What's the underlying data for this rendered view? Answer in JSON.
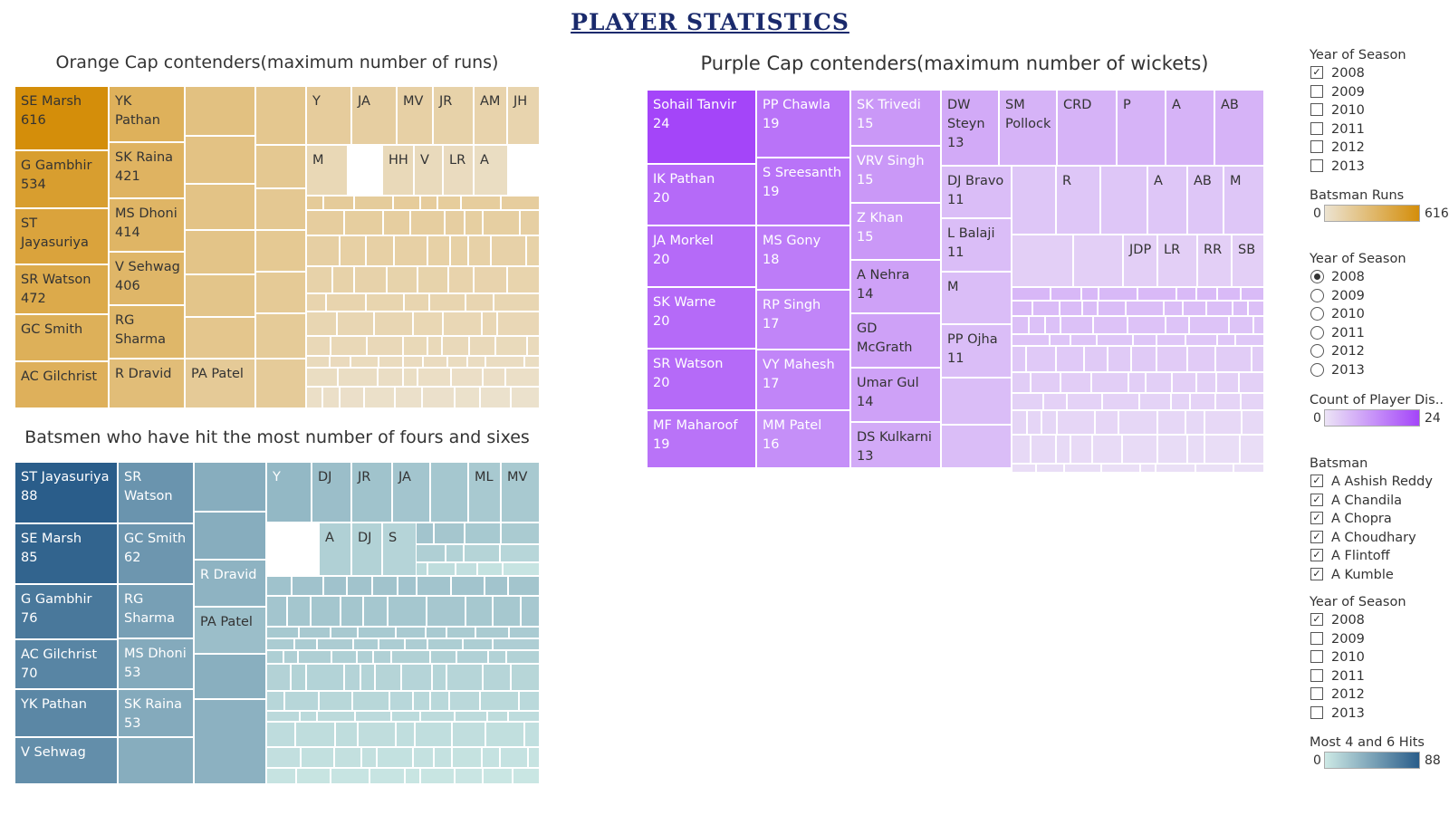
{
  "page_title": "PLAYER STATISTICS",
  "colors": {
    "orange_low": "#ece3d1",
    "orange_high": "#d48e0a",
    "purple_low": "#ece4f6",
    "purple_high": "#a445f9",
    "teal_low": "#cde9e5",
    "teal_high": "#2a5d8a"
  },
  "chart_data": [
    {
      "type": "treemap",
      "title": "Orange Cap contenders(maximum number of runs)",
      "measure": "Batsman Runs",
      "range": [
        0,
        616
      ],
      "items": [
        {
          "label": "SE Marsh",
          "value": 616
        },
        {
          "label": "G Gambhir",
          "value": 534
        },
        {
          "label": "ST Jayasuriya",
          "value": null
        },
        {
          "label": "SR Watson",
          "value": 472
        },
        {
          "label": "GC Smith",
          "value": null
        },
        {
          "label": "AC Gilchrist",
          "value": null
        },
        {
          "label": "YK Pathan",
          "value": null
        },
        {
          "label": "SK Raina",
          "value": 421
        },
        {
          "label": "MS Dhoni",
          "value": 414
        },
        {
          "label": "V Sehwag",
          "value": 406
        },
        {
          "label": "RG Sharma",
          "value": null
        },
        {
          "label": "R Dravid",
          "value": null
        },
        {
          "label": "PA Patel",
          "value": null
        },
        {
          "label": "Y",
          "value": null
        },
        {
          "label": "JA",
          "value": null
        },
        {
          "label": "MV",
          "value": null
        },
        {
          "label": "JR",
          "value": null
        },
        {
          "label": "AM",
          "value": null
        },
        {
          "label": "JH",
          "value": null
        },
        {
          "label": "M",
          "value": null
        },
        {
          "label": "HH",
          "value": null
        },
        {
          "label": "V",
          "value": null
        },
        {
          "label": "LR",
          "value": null
        },
        {
          "label": "A",
          "value": null
        }
      ]
    },
    {
      "type": "treemap",
      "title": "Batsmen who have hit the most number of fours and sixes",
      "measure": "Most 4 and 6 Hits",
      "range": [
        0,
        88
      ],
      "items": [
        {
          "label": "ST Jayasuriya",
          "value": 88
        },
        {
          "label": "SE Marsh",
          "value": 85
        },
        {
          "label": "G Gambhir",
          "value": 76
        },
        {
          "label": "AC Gilchrist",
          "value": 70
        },
        {
          "label": "YK Pathan",
          "value": null
        },
        {
          "label": "V Sehwag",
          "value": null
        },
        {
          "label": "SR Watson",
          "value": null
        },
        {
          "label": "GC Smith",
          "value": 62
        },
        {
          "label": "RG Sharma",
          "value": null
        },
        {
          "label": "MS Dhoni",
          "value": 53
        },
        {
          "label": "SK Raina",
          "value": 53
        },
        {
          "label": "R Dravid",
          "value": null
        },
        {
          "label": "PA Patel",
          "value": null
        },
        {
          "label": "Y",
          "value": null
        },
        {
          "label": "DJ",
          "value": null
        },
        {
          "label": "JR",
          "value": null
        },
        {
          "label": "JA",
          "value": null
        },
        {
          "label": "ML",
          "value": null
        },
        {
          "label": "MV",
          "value": null
        },
        {
          "label": "A",
          "value": null
        },
        {
          "label": "DJ",
          "value": null
        },
        {
          "label": "S",
          "value": null
        }
      ]
    },
    {
      "type": "treemap",
      "title": "Purple Cap contenders(maximum number of wickets)",
      "measure": "Count of Player Dis..",
      "range": [
        0,
        24
      ],
      "items": [
        {
          "label": "Sohail Tanvir",
          "value": 24
        },
        {
          "label": "IK Pathan",
          "value": 20
        },
        {
          "label": "JA Morkel",
          "value": 20
        },
        {
          "label": "SK Warne",
          "value": 20
        },
        {
          "label": "SR Watson",
          "value": 20
        },
        {
          "label": "MF Maharoof",
          "value": 19
        },
        {
          "label": "PP Chawla",
          "value": 19
        },
        {
          "label": "S Sreesanth",
          "value": 19
        },
        {
          "label": "MS Gony",
          "value": 18
        },
        {
          "label": "RP Singh",
          "value": 17
        },
        {
          "label": "VY Mahesh",
          "value": 17
        },
        {
          "label": "MM Patel",
          "value": 16
        },
        {
          "label": "SK Trivedi",
          "value": 15
        },
        {
          "label": "VRV Singh",
          "value": 15
        },
        {
          "label": "Z Khan",
          "value": 15
        },
        {
          "label": "A Nehra",
          "value": 14
        },
        {
          "label": "GD McGrath",
          "value": null
        },
        {
          "label": "Umar Gul",
          "value": 14
        },
        {
          "label": "DS Kulkarni",
          "value": 13
        },
        {
          "label": "DW Steyn",
          "value": 13
        },
        {
          "label": "SM Pollock",
          "value": null
        },
        {
          "label": "DJ Bravo",
          "value": 11
        },
        {
          "label": "L Balaji",
          "value": 11
        },
        {
          "label": "M",
          "value": null
        },
        {
          "label": "PP Ojha",
          "value": 11
        },
        {
          "label": "CRD",
          "value": null
        },
        {
          "label": "P",
          "value": null
        },
        {
          "label": "A",
          "value": null
        },
        {
          "label": "AB",
          "value": null
        },
        {
          "label": "R",
          "value": null
        },
        {
          "label": "A",
          "value": null
        },
        {
          "label": "AB",
          "value": null
        },
        {
          "label": "M",
          "value": null
        },
        {
          "label": "JDP",
          "value": null
        },
        {
          "label": "LR",
          "value": null
        },
        {
          "label": "RR",
          "value": null
        },
        {
          "label": "SB",
          "value": null
        }
      ]
    }
  ],
  "orange": {
    "title": "Orange Cap contenders(maximum number of runs)",
    "cells": [
      {
        "t": "SE Marsh\n616",
        "v": 616,
        "dark": true
      },
      {
        "t": "G Gambhir\n534",
        "v": 534,
        "dark": true
      },
      {
        "t": "ST\nJayasuriya",
        "v": 505,
        "dark": true
      },
      {
        "t": "SR Watson\n472",
        "v": 472,
        "dark": true
      },
      {
        "t": "GC Smith",
        "v": 441,
        "dark": true
      },
      {
        "t": "AC Gilchrist",
        "v": 436,
        "dark": true
      },
      {
        "t": "YK\nPathan",
        "v": 435,
        "dark": true
      },
      {
        "t": "SK Raina\n421",
        "v": 421,
        "dark": true
      },
      {
        "t": "MS Dhoni\n414",
        "v": 414,
        "dark": true
      },
      {
        "t": "V Sehwag\n406",
        "v": 406,
        "dark": true
      },
      {
        "t": "RG\nSharma",
        "v": 404,
        "dark": true
      },
      {
        "t": "R Dravid",
        "v": 371,
        "dark": true
      },
      {
        "t": "PA Patel",
        "v": 302,
        "dark": true
      },
      {
        "t": "",
        "v": 350
      },
      {
        "t": "",
        "v": 345
      },
      {
        "t": "",
        "v": 340
      },
      {
        "t": "",
        "v": 335
      },
      {
        "t": "",
        "v": 330
      },
      {
        "t": "",
        "v": 325
      },
      {
        "t": "",
        "v": 320
      },
      {
        "t": "",
        "v": 315
      },
      {
        "t": "",
        "v": 312
      },
      {
        "t": "",
        "v": 310
      },
      {
        "t": "",
        "v": 305
      },
      {
        "t": "",
        "v": 300
      },
      {
        "t": "",
        "v": 297
      },
      {
        "t": "Y",
        "v": 290
      },
      {
        "t": "JA",
        "v": 280
      },
      {
        "t": "MV",
        "v": 270
      },
      {
        "t": "JR",
        "v": 262
      },
      {
        "t": "AM",
        "v": 255
      },
      {
        "t": "JH",
        "v": 250
      },
      {
        "t": "M",
        "v": 232
      },
      {
        "t": "HH",
        "v": 225
      },
      {
        "t": "V",
        "v": 220
      },
      {
        "t": "LR",
        "v": 212
      },
      {
        "t": "A",
        "v": 205
      },
      {
        "t": "",
        "v": 200
      }
    ]
  },
  "sixes": {
    "title": "Batsmen who have hit the most number of fours and sixes",
    "cells": [
      {
        "t": "ST Jayasuriya\n88",
        "v": 88
      },
      {
        "t": "SE Marsh\n85",
        "v": 85
      },
      {
        "t": "G Gambhir\n76",
        "v": 76
      },
      {
        "t": "AC Gilchrist\n70",
        "v": 70
      },
      {
        "t": "YK Pathan",
        "v": 69
      },
      {
        "t": "V Sehwag",
        "v": 66
      },
      {
        "t": "SR\nWatson",
        "v": 63
      },
      {
        "t": "GC Smith\n62",
        "v": 62
      },
      {
        "t": "RG\nSharma",
        "v": 58
      },
      {
        "t": "MS Dhoni\n53",
        "v": 53
      },
      {
        "t": "SK Raina\n53",
        "v": 53
      },
      {
        "t": "",
        "v": 52
      },
      {
        "t": "",
        "v": 52
      },
      {
        "t": "R Dravid",
        "v": 49
      },
      {
        "t": "PA Patel",
        "v": 44
      },
      {
        "t": "",
        "v": 52
      },
      {
        "t": "",
        "v": 51
      },
      {
        "t": "",
        "v": 50
      },
      {
        "t": "Y",
        "v": 47
      },
      {
        "t": "DJ",
        "v": 44
      },
      {
        "t": "JR",
        "v": 42
      },
      {
        "t": "JA",
        "v": 41
      },
      {
        "t": "",
        "v": 40
      },
      {
        "t": "ML",
        "v": 39
      },
      {
        "t": "MV",
        "v": 39
      },
      {
        "t": "A",
        "v": 36
      },
      {
        "t": "DJ",
        "v": 35
      },
      {
        "t": "S",
        "v": 34
      }
    ]
  },
  "purple": {
    "title": "Purple Cap contenders(maximum number of wickets)",
    "cells": [
      {
        "t": "Sohail Tanvir\n24",
        "v": 24
      },
      {
        "t": "IK Pathan\n20",
        "v": 20
      },
      {
        "t": "JA Morkel\n20",
        "v": 20
      },
      {
        "t": "SK Warne\n20",
        "v": 20
      },
      {
        "t": "SR Watson\n20",
        "v": 20
      },
      {
        "t": "MF Maharoof\n19",
        "v": 19
      },
      {
        "t": "PP Chawla\n19",
        "v": 19
      },
      {
        "t": "S Sreesanth\n19",
        "v": 19
      },
      {
        "t": "MS Gony\n18",
        "v": 18
      },
      {
        "t": "RP Singh\n17",
        "v": 17
      },
      {
        "t": "VY Mahesh\n17",
        "v": 17
      },
      {
        "t": "MM Patel\n16",
        "v": 16
      },
      {
        "t": "SK Trivedi\n15",
        "v": 15
      },
      {
        "t": "VRV Singh\n15",
        "v": 15
      },
      {
        "t": "Z Khan\n15",
        "v": 15
      },
      {
        "t": "A Nehra\n14",
        "v": 14
      },
      {
        "t": "GD\nMcGrath",
        "v": 14
      },
      {
        "t": "Umar Gul\n14",
        "v": 14
      },
      {
        "t": "DS Kulkarni\n13",
        "v": 13
      },
      {
        "t": "DW\nSteyn\n13",
        "v": 13
      },
      {
        "t": "SM\nPollock",
        "v": 12
      },
      {
        "t": "CRD",
        "v": 12
      },
      {
        "t": "P",
        "v": 12
      },
      {
        "t": "A",
        "v": 12
      },
      {
        "t": "AB",
        "v": 12
      },
      {
        "t": "DJ Bravo\n11",
        "v": 11
      },
      {
        "t": "L Balaji\n11",
        "v": 11
      },
      {
        "t": "M",
        "v": 11
      },
      {
        "t": "PP Ojha\n11",
        "v": 11
      },
      {
        "t": "",
        "v": 11
      },
      {
        "t": "",
        "v": 11
      },
      {
        "t": "",
        "v": 10
      },
      {
        "t": "R",
        "v": 10
      },
      {
        "t": "",
        "v": 10
      },
      {
        "t": "A",
        "v": 10
      },
      {
        "t": "AB",
        "v": 10
      },
      {
        "t": "M",
        "v": 10
      },
      {
        "t": "",
        "v": 9
      },
      {
        "t": "",
        "v": 9
      },
      {
        "t": "JDP",
        "v": 9
      },
      {
        "t": "LR",
        "v": 9
      },
      {
        "t": "RR",
        "v": 9
      },
      {
        "t": "SB",
        "v": 9
      }
    ]
  },
  "legend": {
    "year1": {
      "title": "Year of Season",
      "options": [
        "2008",
        "2009",
        "2010",
        "2011",
        "2012",
        "2013"
      ],
      "checked": [
        true,
        false,
        false,
        false,
        false,
        false
      ]
    },
    "runs": {
      "title": "Batsman Runs",
      "min": "0",
      "max": "616"
    },
    "year2": {
      "title": "Year of Season",
      "options": [
        "2008",
        "2009",
        "2010",
        "2011",
        "2012",
        "2013"
      ],
      "selected": "2008"
    },
    "wickets": {
      "title": "Count of Player Dis..",
      "min": "0",
      "max": "24"
    },
    "batsman": {
      "title": "Batsman",
      "options": [
        "A Ashish Reddy",
        "A Chandila",
        "A Chopra",
        "A Choudhary",
        "A Flintoff",
        "A Kumble"
      ],
      "checked": [
        true,
        true,
        true,
        true,
        true,
        true
      ]
    },
    "year3": {
      "title": "Year of Season",
      "options": [
        "2008",
        "2009",
        "2010",
        "2011",
        "2012",
        "2013"
      ],
      "checked": [
        true,
        false,
        false,
        false,
        false,
        false
      ]
    },
    "hits": {
      "title": "Most 4 and 6 Hits",
      "min": "0",
      "max": "88"
    }
  }
}
